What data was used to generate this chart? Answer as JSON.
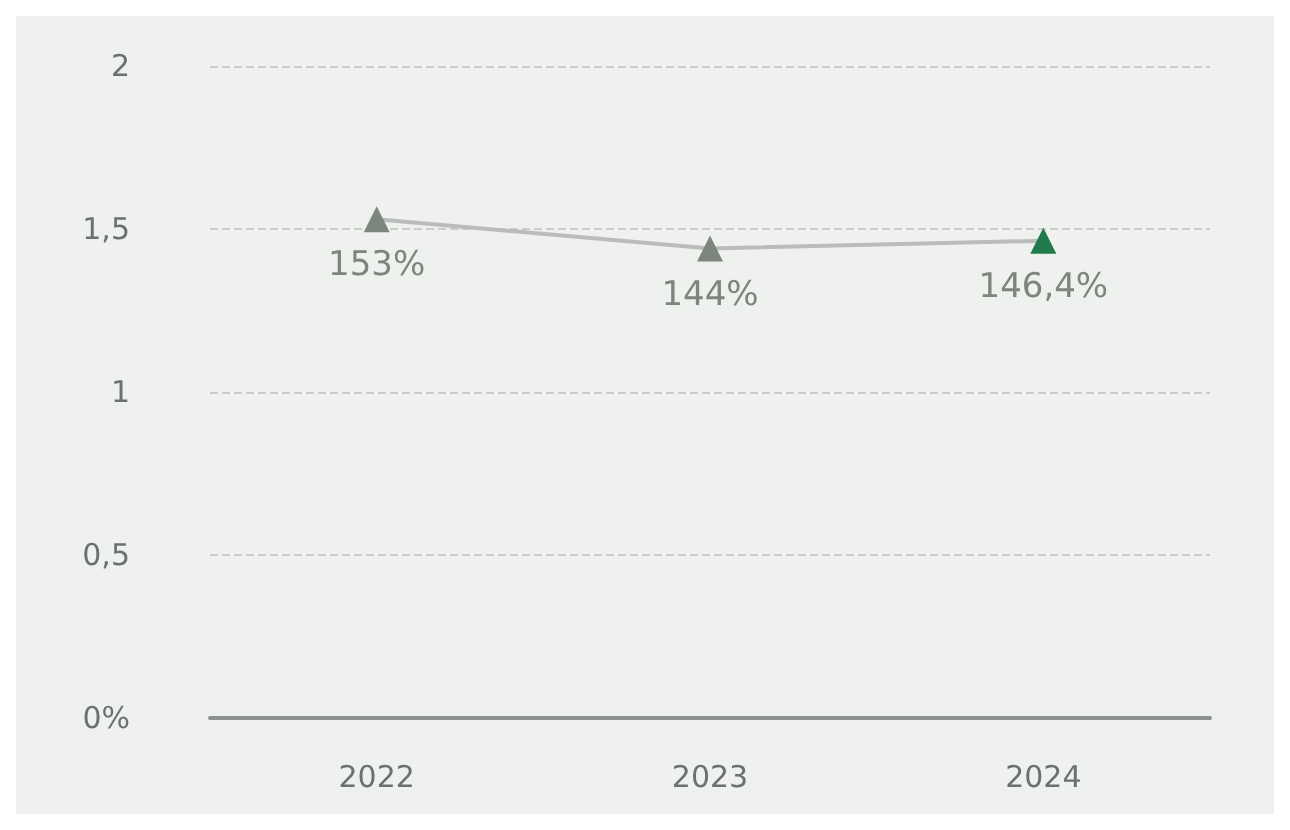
{
  "chart_data": {
    "type": "line",
    "categories": [
      "2022",
      "2023",
      "2024"
    ],
    "series": [
      {
        "color": "#b9bcb9",
        "colors": [
          "#7d857f",
          "#7d857f",
          "#1f7a4c"
        ],
        "values": [
          1.53,
          1.44,
          1.464
        ],
        "value_labels": [
          "153%",
          "144%",
          "146,4%"
        ]
      }
    ],
    "ylim": [
      0,
      2
    ],
    "yticks": [
      {
        "value": 0,
        "label": "0%"
      },
      {
        "value": 0.5,
        "label": "0,5"
      },
      1,
      {
        "value": 1.5,
        "label": "1,5"
      },
      2
    ],
    "grid": "y",
    "marker": "triangle",
    "line_style": "solid"
  }
}
